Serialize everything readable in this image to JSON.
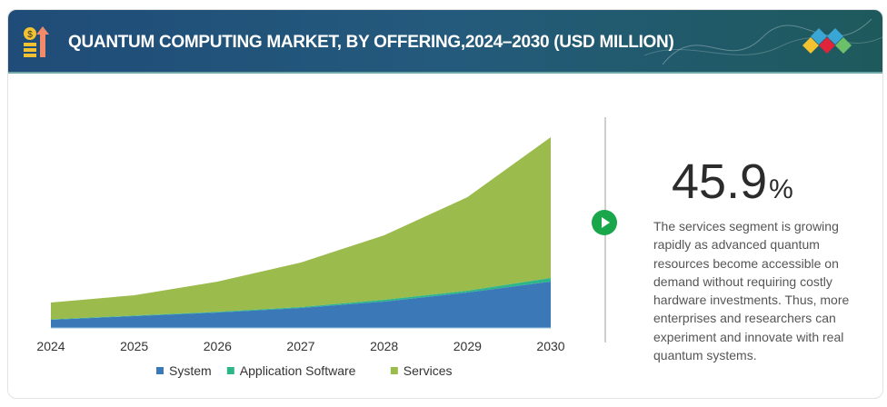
{
  "header": {
    "title": "QUANTUM COMPUTING MARKET, BY OFFERING,2024–2030 (USD MILLION)"
  },
  "highlight": {
    "value": "45.9",
    "unit": "%",
    "description": "The services segment is growing rapidly as advanced quantum resources become accessible on demand without requiring costly hardware investments. Thus, more enterprises and researchers can experiment and innovate with real quantum systems."
  },
  "colors": {
    "system": "#3a78b8",
    "software": "#2fb58a",
    "services": "#9bbb4c",
    "accent": "#1aa64a"
  },
  "chart_data": {
    "type": "area",
    "stacked": true,
    "title": "QUANTUM COMPUTING MARKET, BY OFFERING,2024–2030 (USD MILLION)",
    "categories": [
      "2024",
      "2025",
      "2026",
      "2027",
      "2028",
      "2029",
      "2030"
    ],
    "series": [
      {
        "name": "System",
        "values": [
          9,
          13,
          17,
          22,
          29,
          39,
          51
        ]
      },
      {
        "name": "Application Software",
        "values": [
          0.5,
          0.6,
          0.8,
          1,
          2,
          2,
          4
        ]
      },
      {
        "name": "Services",
        "values": [
          18.5,
          22.4,
          33.2,
          49,
          71,
          103,
          155
        ]
      }
    ],
    "ylim": [
      0,
      215
    ],
    "xlabel": "",
    "ylabel": "",
    "grid": false,
    "legend": "bottom",
    "note": "values relative (no y-axis shown)"
  }
}
